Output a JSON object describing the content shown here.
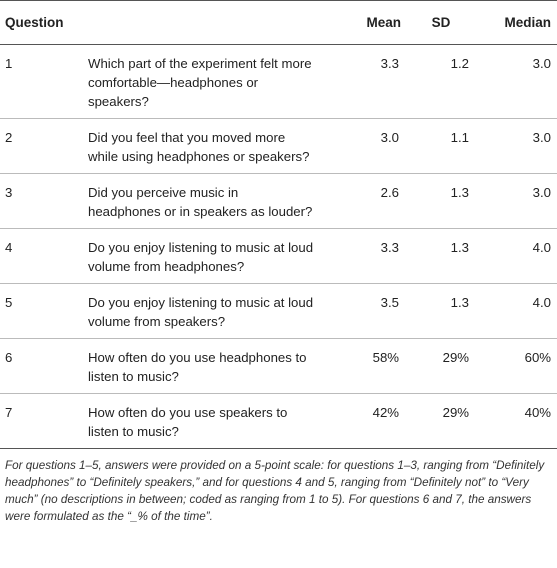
{
  "table": {
    "headers": {
      "question": "Question",
      "mean": "Mean",
      "sd": "SD",
      "median": "Median"
    },
    "rows": [
      {
        "num": "1",
        "question": "Which part of the experiment felt more comfortable—headphones or speakers?",
        "mean": "3.3",
        "sd": "1.2",
        "median": "3.0"
      },
      {
        "num": "2",
        "question": "Did you feel that you moved more while using headphones or speakers?",
        "mean": "3.0",
        "sd": "1.1",
        "median": "3.0"
      },
      {
        "num": "3",
        "question": "Did you perceive music in headphones or in speakers as louder?",
        "mean": "2.6",
        "sd": "1.3",
        "median": "3.0"
      },
      {
        "num": "4",
        "question": "Do you enjoy listening to music at loud volume from headphones?",
        "mean": "3.3",
        "sd": "1.3",
        "median": "4.0"
      },
      {
        "num": "5",
        "question": "Do you enjoy listening to music at loud volume from speakers?",
        "mean": "3.5",
        "sd": "1.3",
        "median": "4.0"
      },
      {
        "num": "6",
        "question": "How often do you use headphones to listen to music?",
        "mean": "58%",
        "sd": "29%",
        "median": "60%"
      },
      {
        "num": "7",
        "question": "How often do you use speakers to listen to music?",
        "mean": "42%",
        "sd": "29%",
        "median": "40%"
      }
    ]
  },
  "footnote": "For questions 1–5, answers were provided on a 5-point scale: for questions 1–3, ranging from “Definitely headphones” to “Definitely speakers,” and for questions 4 and 5, ranging from “Definitely not” to “Very much” (no descriptions in between; coded as ranging from 1 to 5). For questions 6 and 7, the answers were formulated as the “_% of the time”."
}
